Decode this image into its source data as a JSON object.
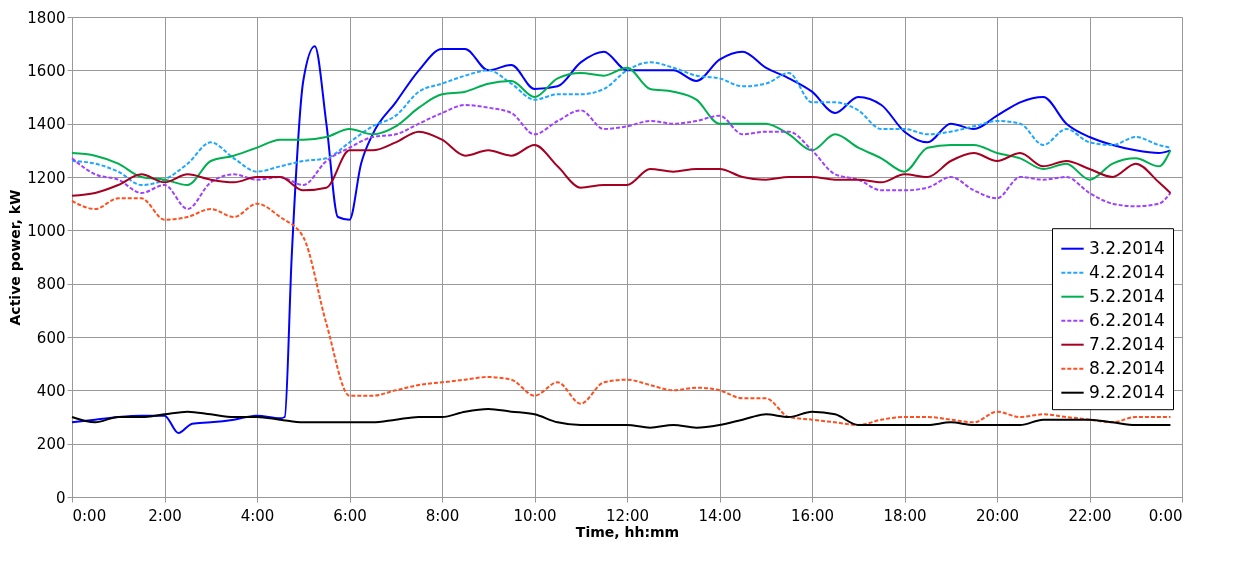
{
  "chart_data": {
    "type": "line",
    "xlabel": "Time, hh:mm",
    "ylabel": "Active power, kW",
    "x": [
      0,
      0.5,
      1,
      1.5,
      2,
      2.5,
      3,
      3.5,
      4,
      4.5,
      5,
      5.5,
      6,
      6.5,
      7,
      7.5,
      8,
      8.5,
      9,
      9.5,
      10,
      10.5,
      11,
      11.5,
      12,
      12.5,
      13,
      13.5,
      14,
      14.5,
      15,
      15.5,
      16,
      16.5,
      17,
      17.5,
      18,
      18.5,
      19,
      19.5,
      20,
      20.5,
      21,
      21.5,
      22,
      22.5,
      23,
      23.5,
      23.75
    ],
    "xlim": [
      0,
      24
    ],
    "ylim": [
      0,
      1800
    ],
    "xticks": [
      {
        "value": 0,
        "label": "0:00"
      },
      {
        "value": 2,
        "label": "2:00"
      },
      {
        "value": 4,
        "label": "4:00"
      },
      {
        "value": 6,
        "label": "6:00"
      },
      {
        "value": 8,
        "label": "8:00"
      },
      {
        "value": 10,
        "label": "10:00"
      },
      {
        "value": 12,
        "label": "12:00"
      },
      {
        "value": 14,
        "label": "14:00"
      },
      {
        "value": 16,
        "label": "16:00"
      },
      {
        "value": 18,
        "label": "18:00"
      },
      {
        "value": 20,
        "label": "20:00"
      },
      {
        "value": 22,
        "label": "22:00"
      },
      {
        "value": 24,
        "label": "0:00"
      }
    ],
    "yticks": [
      0,
      200,
      400,
      600,
      800,
      1000,
      1200,
      1400,
      1600,
      1800
    ],
    "grid": true,
    "legend": "right",
    "marker": "none",
    "series": [
      {
        "name": "3.2.2014",
        "color": "#0000ff",
        "line_style": "solid",
        "x": [
          0,
          0.5,
          1,
          1.5,
          2,
          2.3,
          2.6,
          3,
          3.5,
          4,
          4.5,
          4.6,
          4.75,
          5,
          5.25,
          5.5,
          5.75,
          6,
          6.25,
          6.5,
          7,
          7.5,
          8,
          8.5,
          9,
          9.5,
          10,
          10.5,
          11,
          11.5,
          12,
          12.5,
          13,
          13.5,
          14,
          14.5,
          15,
          15.5,
          16,
          16.5,
          17,
          17.5,
          18,
          18.5,
          19,
          19.5,
          20,
          20.5,
          21,
          21.5,
          22,
          22.5,
          23,
          23.5,
          23.75
        ],
        "values": [
          280,
          290,
          300,
          305,
          305,
          240,
          275,
          280,
          290,
          305,
          295,
          300,
          900,
          1560,
          1690,
          1400,
          1050,
          1040,
          1250,
          1360,
          1480,
          1600,
          1680,
          1680,
          1600,
          1620,
          1530,
          1540,
          1630,
          1670,
          1600,
          1600,
          1600,
          1560,
          1640,
          1670,
          1610,
          1570,
          1520,
          1440,
          1500,
          1470,
          1370,
          1330,
          1400,
          1380,
          1430,
          1480,
          1500,
          1400,
          1350,
          1320,
          1300,
          1290,
          1300
        ]
      },
      {
        "name": "4.2.2014",
        "color": "#1ea7ff",
        "line_style": "dashed",
        "values": [
          1260,
          1250,
          1220,
          1170,
          1190,
          1250,
          1330,
          1270,
          1220,
          1240,
          1260,
          1270,
          1330,
          1390,
          1430,
          1520,
          1550,
          1580,
          1600,
          1550,
          1490,
          1510,
          1510,
          1530,
          1600,
          1630,
          1610,
          1580,
          1570,
          1540,
          1550,
          1590,
          1480,
          1480,
          1450,
          1380,
          1380,
          1360,
          1370,
          1390,
          1410,
          1400,
          1320,
          1380,
          1330,
          1320,
          1350,
          1320,
          1310
        ]
      },
      {
        "name": "5.2.2014",
        "color": "#00b050",
        "line_style": "solid",
        "values": [
          1290,
          1280,
          1250,
          1200,
          1190,
          1170,
          1260,
          1280,
          1310,
          1340,
          1340,
          1350,
          1380,
          1360,
          1390,
          1460,
          1510,
          1520,
          1550,
          1560,
          1500,
          1570,
          1590,
          1580,
          1610,
          1530,
          1520,
          1490,
          1400,
          1400,
          1400,
          1360,
          1300,
          1360,
          1310,
          1270,
          1220,
          1310,
          1320,
          1320,
          1290,
          1270,
          1230,
          1250,
          1190,
          1250,
          1270,
          1240,
          1300
        ]
      },
      {
        "name": "6.2.2014",
        "color": "#a040ff",
        "line_style": "dashed",
        "values": [
          1270,
          1210,
          1190,
          1140,
          1170,
          1080,
          1180,
          1210,
          1190,
          1200,
          1170,
          1260,
          1310,
          1350,
          1360,
          1400,
          1440,
          1470,
          1460,
          1440,
          1360,
          1410,
          1450,
          1380,
          1390,
          1410,
          1400,
          1410,
          1430,
          1360,
          1370,
          1370,
          1300,
          1210,
          1190,
          1150,
          1150,
          1160,
          1200,
          1150,
          1120,
          1200,
          1190,
          1200,
          1140,
          1100,
          1090,
          1100,
          1140
        ]
      },
      {
        "name": "7.2.2014",
        "color": "#a50021",
        "line_style": "solid",
        "values": [
          1130,
          1140,
          1170,
          1210,
          1180,
          1210,
          1190,
          1180,
          1200,
          1200,
          1150,
          1160,
          1300,
          1300,
          1330,
          1370,
          1340,
          1280,
          1300,
          1280,
          1320,
          1240,
          1160,
          1170,
          1170,
          1230,
          1220,
          1230,
          1230,
          1200,
          1190,
          1200,
          1200,
          1190,
          1190,
          1180,
          1210,
          1200,
          1260,
          1290,
          1260,
          1290,
          1240,
          1260,
          1230,
          1200,
          1250,
          1180,
          1140
        ]
      },
      {
        "name": "8.2.2014",
        "color": "#ff4f1f",
        "line_style": "dashed",
        "values": [
          1110,
          1080,
          1120,
          1120,
          1040,
          1050,
          1080,
          1050,
          1100,
          1050,
          975,
          650,
          380,
          380,
          400,
          420,
          430,
          440,
          450,
          440,
          380,
          430,
          350,
          430,
          440,
          420,
          400,
          410,
          400,
          370,
          370,
          300,
          290,
          280,
          270,
          290,
          300,
          300,
          290,
          280,
          320,
          300,
          310,
          300,
          290,
          280,
          300,
          300,
          300
        ]
      },
      {
        "name": "9.2.2014",
        "color": "#000000",
        "line_style": "solid",
        "values": [
          300,
          280,
          300,
          300,
          310,
          320,
          310,
          300,
          300,
          290,
          280,
          280,
          280,
          280,
          290,
          300,
          300,
          320,
          330,
          320,
          310,
          280,
          270,
          270,
          270,
          260,
          270,
          260,
          270,
          290,
          310,
          300,
          320,
          310,
          270,
          270,
          270,
          270,
          280,
          270,
          270,
          270,
          290,
          290,
          290,
          280,
          270,
          270,
          270
        ]
      }
    ]
  }
}
